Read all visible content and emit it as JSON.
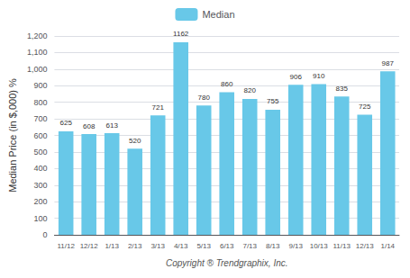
{
  "chart_data": {
    "type": "bar",
    "categories": [
      "11/12",
      "12/12",
      "1/13",
      "2/13",
      "3/13",
      "4/13",
      "5/13",
      "6/13",
      "7/13",
      "8/13",
      "9/13",
      "10/13",
      "11/13",
      "12/13",
      "1/14"
    ],
    "series": [
      {
        "name": "Median",
        "color": "#68C8E8",
        "values": [
          625,
          608,
          613,
          520,
          721,
          1162,
          780,
          860,
          820,
          755,
          906,
          910,
          835,
          725,
          987
        ]
      }
    ],
    "ylabel": "Median Price (in $,000) %",
    "xlabel": "Copyright ® Trendgraphix, Inc.",
    "ylim": [
      0,
      1200
    ],
    "yticks": [
      0,
      100,
      200,
      300,
      400,
      500,
      600,
      700,
      800,
      900,
      1000,
      1100,
      1200
    ],
    "grid": true,
    "legend": "top",
    "data_labels": true
  }
}
